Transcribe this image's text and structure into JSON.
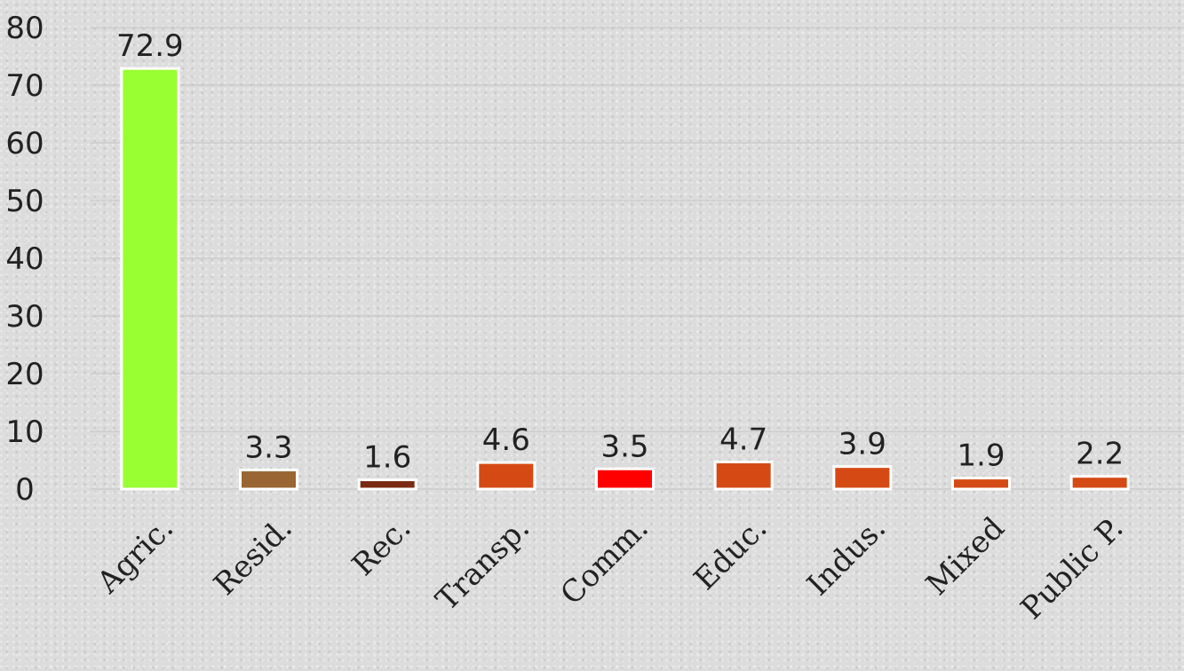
{
  "chart_data": {
    "type": "bar",
    "categories": [
      "Agric.",
      "Resid.",
      "Rec.",
      "Transp.",
      "Comm.",
      "Educ.",
      "Indus.",
      "Mixed",
      "Public P."
    ],
    "values": [
      72.9,
      3.3,
      1.6,
      4.6,
      3.5,
      4.7,
      3.9,
      1.9,
      2.2
    ],
    "value_labels": [
      "72.9",
      "3.3",
      "1.6",
      "4.6",
      "3.5",
      "4.7",
      "3.9",
      "1.9",
      "2.2"
    ],
    "colors": [
      "#99ff33",
      "#996633",
      "#7a2a12",
      "#d54a14",
      "#ff0000",
      "#d54a14",
      "#d54a14",
      "#d54a14",
      "#d54a14"
    ],
    "y_ticks": [
      "0",
      "10",
      "20",
      "30",
      "40",
      "50",
      "60",
      "70",
      "80"
    ],
    "ylim": [
      0,
      80
    ],
    "grid": true,
    "legend": "none",
    "title": "",
    "xlabel": "",
    "ylabel": ""
  }
}
